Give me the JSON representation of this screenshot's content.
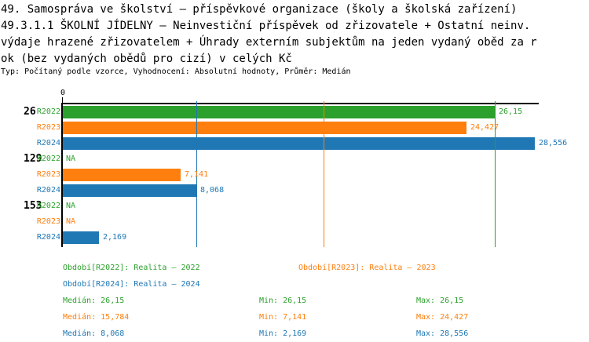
{
  "header": {
    "lines": [
      "49. Samospráva ve školství – příspěvkové organizace (školy a školská zařízení)",
      "49.3.1.1 ŠKOLNÍ JÍDELNY – Neinvestiční příspěvek od zřizovatele + Ostatní neinv.",
      "výdaje hrazené zřizovatelem + Úhrady externím subjektům na jeden vydaný oběd za r",
      "ok (bez vydaných obědů pro cizí) v celých Kč"
    ],
    "meta": "Typ: Počítaný podle vzorce, Vyhodnocení: Absolutní hodnoty, Průměr: Medián"
  },
  "colors": {
    "r2022_green": "#2ca02c",
    "r2023_orange": "#ff7f0e",
    "r2024_blue": "#1f77b4",
    "axis_black": "#000000"
  },
  "chart_data": {
    "type": "bar",
    "orientation": "horizontal",
    "unit": "Kč",
    "axis_origin_label": "0",
    "xlim": [
      0,
      28.556
    ],
    "grid": false,
    "series": [
      {
        "name": "R2022",
        "color": "#2ca02c",
        "median": 26.15,
        "median_display": "26,15"
      },
      {
        "name": "R2023",
        "color": "#ff7f0e",
        "median": 15.784,
        "median_display": "15,784"
      },
      {
        "name": "R2024",
        "color": "#1f77b4",
        "median": 8.068,
        "median_display": "8,068"
      }
    ],
    "groups": [
      {
        "label": "26",
        "bars": [
          {
            "series": "R2022",
            "value": 26.15,
            "display": "26,15"
          },
          {
            "series": "R2023",
            "value": 24.427,
            "display": "24,427"
          },
          {
            "series": "R2024",
            "value": 28.556,
            "display": "28,556"
          }
        ]
      },
      {
        "label": "129",
        "bars": [
          {
            "series": "R2022",
            "value": null,
            "display": "NA"
          },
          {
            "series": "R2023",
            "value": 7.141,
            "display": "7,141"
          },
          {
            "series": "R2024",
            "value": 8.068,
            "display": "8,068"
          }
        ]
      },
      {
        "label": "153",
        "bars": [
          {
            "series": "R2022",
            "value": null,
            "display": "NA"
          },
          {
            "series": "R2023",
            "value": null,
            "display": "NA"
          },
          {
            "series": "R2024",
            "value": 2.169,
            "display": "2,169"
          }
        ]
      }
    ]
  },
  "legend": {
    "periods": [
      {
        "id": "R2022",
        "text": "Období[R2022]: Realita – 2022",
        "color": "#2ca02c"
      },
      {
        "id": "R2023",
        "text": "Období[R2023]: Realita – 2023",
        "color": "#ff7f0e"
      },
      {
        "id": "R2024",
        "text": "Období[R2024]: Realita – 2024",
        "color": "#1f77b4"
      }
    ],
    "stats": [
      {
        "id": "R2022",
        "median": "Medián: 26,15",
        "min": "Min: 26,15",
        "max": "Max: 26,15",
        "color": "#2ca02c"
      },
      {
        "id": "R2023",
        "median": "Medián: 15,784",
        "min": "Min: 7,141",
        "max": "Max: 24,427",
        "color": "#ff7f0e"
      },
      {
        "id": "R2024",
        "median": "Medián: 8,068",
        "min": "Min: 2,169",
        "max": "Max: 28,556",
        "color": "#1f77b4"
      }
    ]
  }
}
